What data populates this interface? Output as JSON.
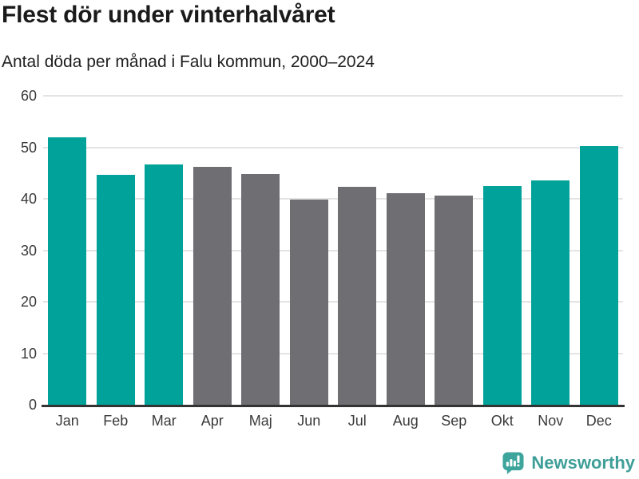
{
  "header": {
    "title": "Flest dör under vinterhalvåret",
    "subtitle": "Antal döda per månad i Falu kommun, 2000–2024"
  },
  "chart_data": {
    "type": "bar",
    "title": "Flest dör under vinterhalvåret",
    "subtitle": "Antal döda per månad i Falu kommun, 2000–2024",
    "categories": [
      "Jan",
      "Feb",
      "Mar",
      "Apr",
      "Maj",
      "Jun",
      "Jul",
      "Aug",
      "Sep",
      "Okt",
      "Nov",
      "Dec"
    ],
    "values": [
      51.9,
      44.6,
      46.7,
      46.2,
      44.8,
      39.8,
      42.3,
      41.1,
      40.7,
      42.5,
      43.6,
      50.2
    ],
    "highlighted": [
      true,
      true,
      true,
      false,
      false,
      false,
      false,
      false,
      false,
      true,
      true,
      true
    ],
    "xlabel": "",
    "ylabel": "",
    "ylim": [
      0,
      60
    ],
    "yticks": [
      0,
      10,
      20,
      30,
      40,
      50,
      60
    ],
    "grid": true,
    "legend_position": "none",
    "colors": {
      "highlight": "#00a29a",
      "muted": "#6e6e73",
      "gridline": "#e4e4e4",
      "axis": "#333333",
      "tick_text": "#3a3a3a"
    }
  },
  "footer": {
    "brand": "Newsworthy",
    "brand_color": "#3f9f98",
    "logo_icon": "speech-bubble-bar-chart-icon",
    "logo_icon_color": "#3ea59d"
  }
}
